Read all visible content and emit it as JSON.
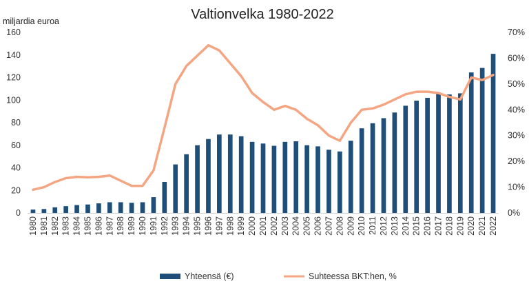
{
  "chart_data": {
    "type": "bar",
    "title": "Valtionvelka 1980-2022",
    "ylabel": "miljardia euroa",
    "ylim": [
      0,
      160
    ],
    "y_ticks": [
      "0",
      "20",
      "40",
      "60",
      "80",
      "100",
      "120",
      "140",
      "160"
    ],
    "y2lim": [
      0,
      70
    ],
    "y2_ticks": [
      "0%",
      "10%",
      "20%",
      "30%",
      "40%",
      "50%",
      "60%",
      "70%"
    ],
    "grid": false,
    "legend_position": "bottom",
    "categories": [
      "1980",
      "1981",
      "1982",
      "1983",
      "1984",
      "1985",
      "1986",
      "1987",
      "1988",
      "1989",
      "1990",
      "1991",
      "1992",
      "1993",
      "1994",
      "1995",
      "1996",
      "1997",
      "1998",
      "1999",
      "2000",
      "2001",
      "2002",
      "2003",
      "2004",
      "2005",
      "2006",
      "2007",
      "2008",
      "2009",
      "2010",
      "2011",
      "2012",
      "2013",
      "2014",
      "2015",
      "2016",
      "2017",
      "2018",
      "2019",
      "2020",
      "2021",
      "2022"
    ],
    "series": [
      {
        "name": "Yhteensä (€)",
        "type": "bar",
        "axis": "left",
        "color": "#1f4e79",
        "values": [
          3,
          3.5,
          5,
          6,
          7,
          7.5,
          8.5,
          9.5,
          9.5,
          9,
          9.5,
          14,
          27.5,
          43,
          52,
          60,
          65.5,
          69.5,
          69.5,
          68,
          63,
          61.5,
          59.5,
          63,
          63.5,
          60,
          59,
          56,
          54.5,
          64,
          75,
          79.5,
          84,
          89,
          95,
          99.5,
          102,
          105.5,
          105,
          106,
          124.5,
          128.5,
          141
        ]
      },
      {
        "name": "Suhteessa BKT:hen, %",
        "type": "line",
        "axis": "right",
        "color": "#f4a582",
        "values": [
          9,
          10,
          12,
          13.5,
          14,
          13.8,
          14,
          14.5,
          12.5,
          10.5,
          10.5,
          16.5,
          33,
          50,
          57,
          61,
          65,
          63,
          58,
          53,
          46.5,
          43,
          40,
          41.5,
          40,
          36.5,
          34,
          30,
          28,
          35,
          40,
          40.5,
          42,
          44,
          46,
          47,
          47,
          46.5,
          45,
          44,
          52.5,
          51.5,
          53.5
        ]
      }
    ]
  },
  "colors": {
    "bar": "#1f4e79",
    "line": "#f4a582",
    "axis_text": "#333333"
  }
}
